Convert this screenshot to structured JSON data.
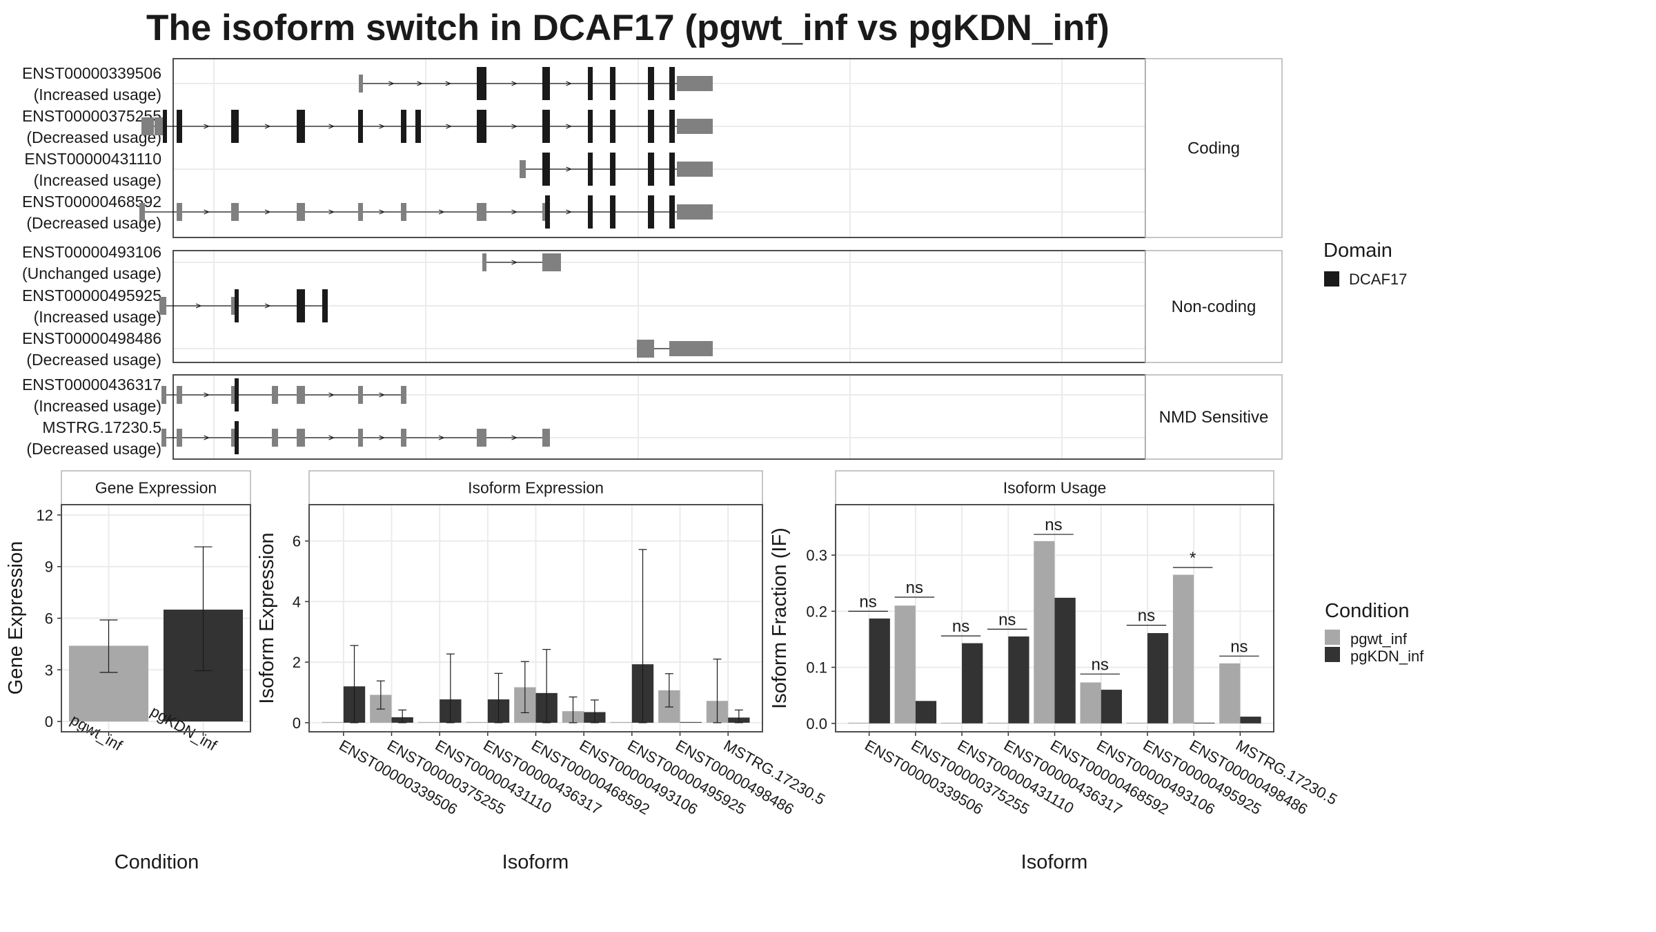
{
  "title": "The isoform switch in DCAF17 (pgwt_inf vs pgKDN_inf)",
  "colors": {
    "exon": "#808080",
    "domain": "#1a1a1a",
    "pgwt_inf": "#a8a8a8",
    "pgKDN_inf": "#333333",
    "panel_border": "#4d4d4d",
    "strip_border": "#b3b3b3",
    "grid": "#ebebeb"
  },
  "legend_domain": {
    "title": "Domain",
    "items": [
      "DCAF17"
    ]
  },
  "legend_condition": {
    "title": "Condition",
    "items": [
      "pgwt_inf",
      "pgKDN_inf"
    ]
  },
  "chart_data": [
    {
      "type": "gene-structure",
      "facets": [
        {
          "label": "Coding",
          "isoforms": [
            {
              "id": "ENST00000339506",
              "usage": "(Increased usage)",
              "utr": [
                [
                  520,
                  526
                ],
                [
                  981,
                  1033
                ]
              ],
              "domain": [
                [
                  691,
                  705
                ],
                [
                  786,
                  797
                ],
                [
                  852,
                  859
                ],
                [
                  884,
                  892
                ],
                [
                  939,
                  948
                ],
                [
                  970,
                  978
                ]
              ]
            },
            {
              "id": "ENST00000375255",
              "usage": "(Decreased usage)",
              "utr": [
                [
                  205,
                  223
                ],
                [
                  224,
                  236
                ],
                [
                  981,
                  1033
                ]
              ],
              "domain": [
                [
                  236,
                  242
                ],
                [
                  256,
                  264
                ],
                [
                  335,
                  346
                ],
                [
                  430,
                  442
                ],
                [
                  519,
                  526
                ],
                [
                  581,
                  589
                ],
                [
                  602,
                  610
                ],
                [
                  691,
                  705
                ],
                [
                  786,
                  797
                ],
                [
                  852,
                  859
                ],
                [
                  884,
                  892
                ],
                [
                  939,
                  948
                ],
                [
                  970,
                  978
                ]
              ]
            },
            {
              "id": "ENST00000431110",
              "usage": "(Increased usage)",
              "utr": [
                [
                  753,
                  758
                ],
                [
                  758,
                  762
                ],
                [
                  981,
                  1033
                ]
              ],
              "domain": [
                [
                  786,
                  797
                ],
                [
                  852,
                  859
                ],
                [
                  884,
                  892
                ],
                [
                  939,
                  948
                ],
                [
                  970,
                  978
                ]
              ]
            },
            {
              "id": "ENST00000468592",
              "usage": "(Decreased usage)",
              "utr": [
                [
                  202,
                  210
                ],
                [
                  256,
                  264
                ],
                [
                  335,
                  346
                ],
                [
                  430,
                  442
                ],
                [
                  519,
                  526
                ],
                [
                  581,
                  589
                ],
                [
                  691,
                  705
                ],
                [
                  786,
                  790
                ],
                [
                  981,
                  1033
                ]
              ],
              "domain": [
                [
                  790,
                  797
                ],
                [
                  852,
                  859
                ],
                [
                  884,
                  892
                ],
                [
                  939,
                  948
                ],
                [
                  970,
                  978
                ]
              ]
            }
          ]
        },
        {
          "label": "Non-coding",
          "isoforms": [
            {
              "id": "ENST00000493106",
              "usage": "(Unchanged usage)",
              "utr": [
                [
                  699,
                  705
                ],
                [
                  786,
                  813
                ]
              ],
              "domain": []
            },
            {
              "id": "ENST00000495925",
              "usage": "(Increased usage)",
              "utr": [
                [
                  231,
                  241
                ],
                [
                  335,
                  340
                ]
              ],
              "domain": [
                [
                  340,
                  346
                ],
                [
                  430,
                  442
                ],
                [
                  467,
                  475
                ]
              ]
            },
            {
              "id": "ENST00000498486",
              "usage": "(Decreased usage)",
              "utr": [
                [
                  923,
                  948
                ],
                [
                  970,
                  1033
                ]
              ],
              "domain": []
            }
          ]
        },
        {
          "label": "NMD Sensitive",
          "isoforms": [
            {
              "id": "ENST00000436317",
              "usage": "(Increased usage)",
              "utr": [
                [
                  234,
                  241
                ],
                [
                  256,
                  264
                ],
                [
                  335,
                  340
                ],
                [
                  394,
                  403
                ],
                [
                  430,
                  433
                ],
                [
                  433,
                  442
                ],
                [
                  519,
                  526
                ],
                [
                  581,
                  589
                ]
              ],
              "domain": [
                [
                  340,
                  346
                ]
              ]
            },
            {
              "id": "MSTRG.17230.5",
              "usage": "(Decreased usage)",
              "utr": [
                [
                  234,
                  241
                ],
                [
                  256,
                  264
                ],
                [
                  335,
                  340
                ],
                [
                  394,
                  403
                ],
                [
                  430,
                  433
                ],
                [
                  433,
                  442
                ],
                [
                  519,
                  526
                ],
                [
                  581,
                  589
                ],
                [
                  691,
                  705
                ],
                [
                  786,
                  797
                ]
              ],
              "domain": [
                [
                  340,
                  346
                ]
              ]
            }
          ]
        }
      ]
    },
    {
      "type": "bar",
      "title": "Gene Expression",
      "xlabel": "Condition",
      "ylabel": "Gene Expression",
      "categories": [
        "pgwt_inf",
        "pgKDN_inf"
      ],
      "values": [
        4.4,
        6.5
      ],
      "error": [
        [
          2.85,
          5.9
        ],
        [
          2.95,
          10.15
        ]
      ],
      "ylim": [
        -0.6,
        12.6
      ],
      "yticks": [
        0,
        3,
        6,
        9,
        12
      ]
    },
    {
      "type": "bar",
      "title": "Isoform Expression",
      "xlabel": "Isoform",
      "ylabel": "Isoform Expression",
      "ylim": [
        -0.3,
        7.2
      ],
      "yticks": [
        0,
        2,
        4,
        6
      ],
      "categories": [
        "ENST00000339506",
        "ENST00000375255",
        "ENST00000431110",
        "ENST00000436317",
        "ENST00000468592",
        "ENST00000493106",
        "ENST00000495925",
        "ENST00000498486",
        "MSTRG.17230.5"
      ],
      "series": [
        {
          "name": "pgwt_inf",
          "values": [
            0.0,
            0.92,
            0.0,
            0.0,
            1.17,
            0.38,
            0.0,
            1.07,
            0.72
          ],
          "error": [
            [
              0,
              0
            ],
            [
              0.45,
              1.38
            ],
            [
              0,
              0
            ],
            [
              0,
              0
            ],
            [
              0.33,
              2.02
            ],
            [
              0.0,
              0.85
            ],
            [
              0,
              0
            ],
            [
              0.52,
              1.62
            ],
            [
              0.0,
              2.1
            ]
          ]
        },
        {
          "name": "pgKDN_inf",
          "values": [
            1.2,
            0.18,
            0.77,
            0.77,
            0.98,
            0.35,
            1.93,
            0.0,
            0.17
          ],
          "error": [
            [
              0.0,
              2.55
            ],
            [
              0.0,
              0.42
            ],
            [
              0.0,
              2.27
            ],
            [
              0.0,
              1.63
            ],
            [
              0.0,
              2.42
            ],
            [
              0.0,
              0.75
            ],
            [
              0.0,
              5.72
            ],
            [
              0,
              0
            ],
            [
              0.0,
              0.42
            ]
          ]
        }
      ]
    },
    {
      "type": "bar",
      "title": "Isoform Usage",
      "xlabel": "Isoform",
      "ylabel": "Isoform Fraction (IF)",
      "ylim": [
        -0.015,
        0.39
      ],
      "yticks": [
        0.0,
        0.1,
        0.2,
        0.3
      ],
      "yticklabels": [
        "0.0",
        "0.1",
        "0.2",
        "0.3"
      ],
      "categories": [
        "ENST00000339506",
        "ENST00000375255",
        "ENST00000431110",
        "ENST00000436317",
        "ENST00000468592",
        "ENST00000493106",
        "ENST00000495925",
        "ENST00000498486",
        "MSTRG.17230.5"
      ],
      "series": [
        {
          "name": "pgwt_inf",
          "values": [
            0.0,
            0.21,
            0.0,
            0.0,
            0.325,
            0.073,
            0.0,
            0.265,
            0.107
          ]
        },
        {
          "name": "pgKDN_inf",
          "values": [
            0.187,
            0.04,
            0.143,
            0.155,
            0.224,
            0.06,
            0.161,
            0.0,
            0.012
          ]
        }
      ],
      "significance": [
        {
          "label": "ns",
          "y": 0.2
        },
        {
          "label": "ns",
          "y": 0.225
        },
        {
          "label": "ns",
          "y": 0.156
        },
        {
          "label": "ns",
          "y": 0.168
        },
        {
          "label": "ns",
          "y": 0.337
        },
        {
          "label": "ns",
          "y": 0.088
        },
        {
          "label": "ns",
          "y": 0.175
        },
        {
          "label": "*",
          "y": 0.278
        },
        {
          "label": "ns",
          "y": 0.12
        }
      ]
    }
  ]
}
